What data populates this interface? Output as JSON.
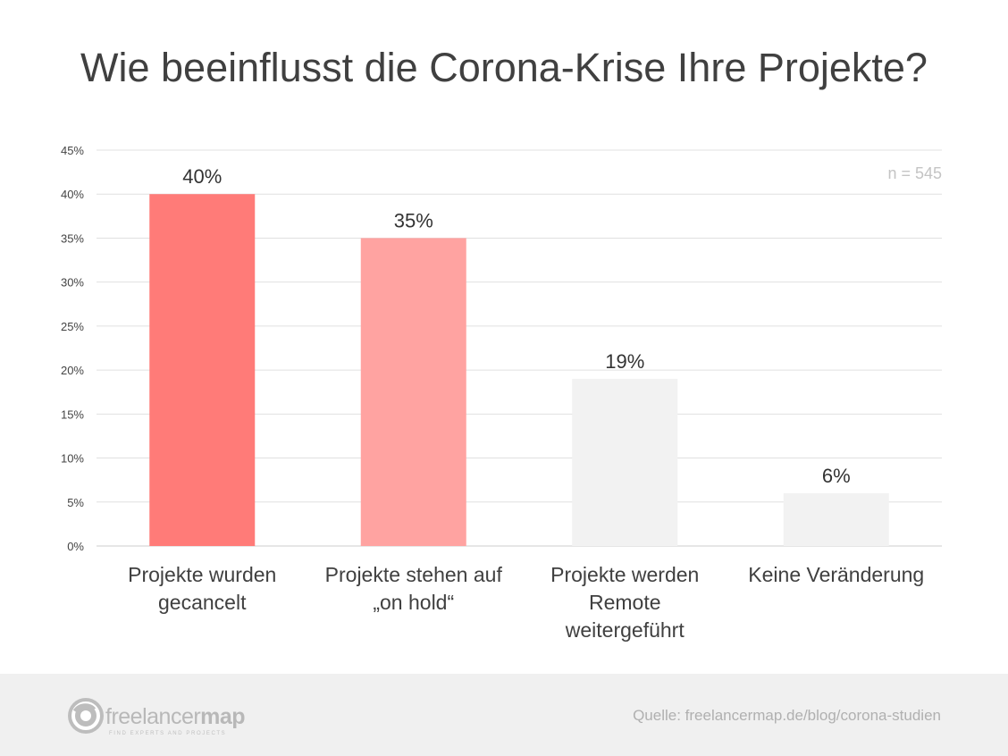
{
  "chart_data": {
    "type": "bar",
    "title": "Wie beeinflusst die Corona-Krise Ihre Projekte?",
    "categories": [
      [
        "Projekte wurden",
        "gecancelt"
      ],
      [
        "Projekte stehen auf",
        "„on hold“"
      ],
      [
        "Projekte werden",
        "Remote",
        "weitergeführt"
      ],
      [
        "Keine Veränderung"
      ]
    ],
    "values": [
      40,
      35,
      19,
      6
    ],
    "value_labels": [
      "40%",
      "35%",
      "19%",
      "6%"
    ],
    "bar_colors": [
      "#ff7b78",
      "#ffa3a1",
      "#f2f2f2",
      "#f2f2f2"
    ],
    "yticks": [
      "0%",
      "5%",
      "10%",
      "15%",
      "20%",
      "25%",
      "30%",
      "35%",
      "40%",
      "45%"
    ],
    "ylim": [
      0,
      45
    ],
    "grid": true,
    "annotation": "n = 545"
  },
  "footer": {
    "logo_text_light": "freelancer",
    "logo_text_bold": "map",
    "logo_tagline": "FIND EXPERTS AND PROJECTS",
    "source": "Quelle: freelancermap.de/blog/corona-studien"
  }
}
